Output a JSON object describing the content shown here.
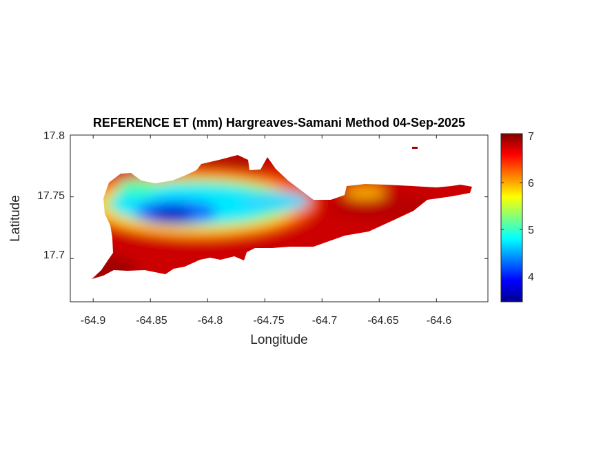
{
  "chart_data": {
    "type": "heatmap",
    "title": "REFERENCE ET (mm) Hargreaves-Samani Method  04-Sep-2025",
    "xlabel": "Longitude",
    "ylabel": "Latitude",
    "xlim": [
      -64.92,
      -64.555
    ],
    "ylim": [
      17.665,
      17.8
    ],
    "xticks": [
      -64.9,
      -64.85,
      -64.8,
      -64.75,
      -64.7,
      -64.65,
      -64.6
    ],
    "xtick_labels": [
      "-64.9",
      "-64.85",
      "-64.8",
      "-64.75",
      "-64.7",
      "-64.65",
      "-64.6"
    ],
    "yticks": [
      17.7,
      17.75,
      17.8
    ],
    "ytick_labels": [
      "17.7",
      "17.75",
      "17.8"
    ],
    "colorbar": {
      "colormap": "jet",
      "range": [
        3.5,
        7.1
      ],
      "ticks": [
        4,
        5,
        6,
        7
      ],
      "tick_labels": [
        "4",
        "5",
        "6",
        "7"
      ]
    },
    "grid": false
  }
}
